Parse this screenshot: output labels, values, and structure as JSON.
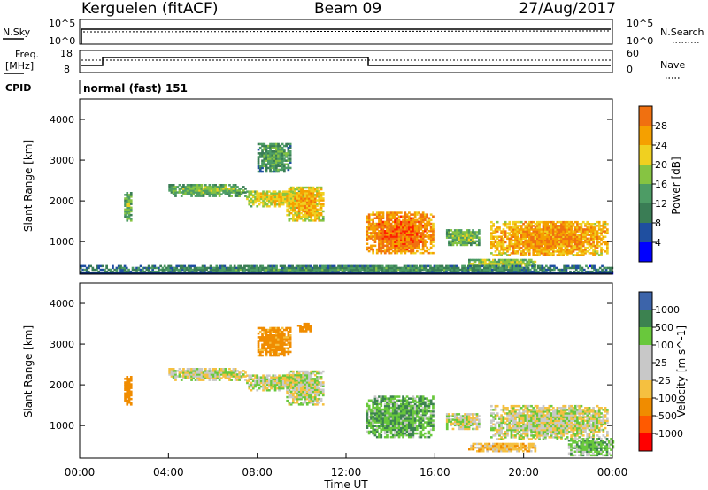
{
  "header": {
    "station": "Kerguelen (fitACF)",
    "beam": "Beam 09",
    "date": "27/Aug/2017"
  },
  "params": {
    "nsky_label": "N.Sky",
    "nsearch_label": "N.Search",
    "freq_label_1": "Freq.",
    "freq_label_2": "[MHz]",
    "nave_label": "Nave",
    "cpid_label": "CPID",
    "cpid_value": "normal (fast) 151",
    "noise_ticks_left": [
      "10^5",
      "10^0"
    ],
    "noise_ticks_right": [
      "10^5",
      "10^0"
    ],
    "freq_ticks": [
      "18",
      "8"
    ],
    "nave_ticks": [
      "60",
      "0"
    ]
  },
  "colors": {
    "power_scale": [
      "#0000ff",
      "#1f4fa0",
      "#3a7d55",
      "#4d9c65",
      "#86c442",
      "#f0d020",
      "#f5a000",
      "#f07010",
      "#ff2000"
    ],
    "velocity_scale": [
      "#ff0000",
      "#ff5a00",
      "#f08c00",
      "#f5c040",
      "#c8c8c8",
      "#c8c8c8",
      "#69c83c",
      "#3c8250",
      "#3c64aa",
      "#1e3cc8"
    ]
  },
  "chart_data": [
    {
      "type": "heatmap",
      "title": "Power",
      "xlabel": "",
      "ylabel": "Slant Range [km]",
      "colorbar_label": "Power [dB]",
      "colorbar_ticks": [
        "28",
        "24",
        "20",
        "16",
        "12",
        "8",
        "4"
      ],
      "y_ticks": [
        "4000",
        "3000",
        "2000",
        "1000"
      ],
      "ylim": [
        200,
        4500
      ],
      "xlim": [
        0,
        24
      ],
      "echo_regions": [
        {
          "t": [
            2.0,
            2.3
          ],
          "r": [
            1500,
            2200
          ],
          "level": 12
        },
        {
          "t": [
            4.0,
            7.5
          ],
          "r": [
            2100,
            2400
          ],
          "level": 12
        },
        {
          "t": [
            7.5,
            10.3
          ],
          "r": [
            1850,
            2250
          ],
          "level": 16
        },
        {
          "t": [
            8.0,
            9.5
          ],
          "r": [
            2700,
            3400
          ],
          "level": 10
        },
        {
          "t": [
            9.3,
            11.0
          ],
          "r": [
            1500,
            2350
          ],
          "level": 18
        },
        {
          "t": [
            12.9,
            15.9
          ],
          "r": [
            700,
            1700
          ],
          "level": 22
        },
        {
          "t": [
            16.5,
            18.0
          ],
          "r": [
            900,
            1300
          ],
          "level": 12
        },
        {
          "t": [
            17.5,
            20.5
          ],
          "r": [
            350,
            550
          ],
          "level": 14
        },
        {
          "t": [
            18.5,
            23.8
          ],
          "r": [
            650,
            1500
          ],
          "level": 20
        },
        {
          "t": [
            0.0,
            24.0
          ],
          "r": [
            200,
            400
          ],
          "level": 8
        }
      ]
    },
    {
      "type": "heatmap",
      "title": "Velocity",
      "xlabel": "Time UT",
      "ylabel": "Slant Range [km]",
      "colorbar_label": "Velocity [m s^-1]",
      "colorbar_ticks": [
        "1000",
        "500",
        "100",
        "25",
        "-25",
        "-100",
        "-500",
        "-1000"
      ],
      "y_ticks": [
        "4000",
        "3000",
        "2000",
        "1000"
      ],
      "x_ticks": [
        "00:00",
        "04:00",
        "08:00",
        "12:00",
        "16:00",
        "20:00",
        "00:00"
      ],
      "ylim": [
        200,
        4500
      ],
      "xlim": [
        0,
        24
      ],
      "echo_regions": [
        {
          "t": [
            2.0,
            2.3
          ],
          "r": [
            1500,
            2200
          ],
          "vel": -200
        },
        {
          "t": [
            4.0,
            7.5
          ],
          "r": [
            2100,
            2400
          ],
          "vel": 0
        },
        {
          "t": [
            7.5,
            10.3
          ],
          "r": [
            1850,
            2250
          ],
          "vel": 0
        },
        {
          "t": [
            8.0,
            9.5
          ],
          "r": [
            2700,
            3400
          ],
          "vel": -150
        },
        {
          "t": [
            9.8,
            10.4
          ],
          "r": [
            3300,
            3500
          ],
          "vel": -400
        },
        {
          "t": [
            9.3,
            11.0
          ],
          "r": [
            1500,
            2350
          ],
          "vel": 0
        },
        {
          "t": [
            12.9,
            15.9
          ],
          "r": [
            700,
            1700
          ],
          "vel": 80
        },
        {
          "t": [
            16.5,
            18.0
          ],
          "r": [
            900,
            1300
          ],
          "vel": 0
        },
        {
          "t": [
            17.5,
            20.5
          ],
          "r": [
            350,
            550
          ],
          "vel": -60
        },
        {
          "t": [
            18.5,
            23.8
          ],
          "r": [
            650,
            1500
          ],
          "vel": 0
        },
        {
          "t": [
            22.0,
            24.0
          ],
          "r": [
            250,
            700
          ],
          "vel": 60
        }
      ]
    }
  ]
}
